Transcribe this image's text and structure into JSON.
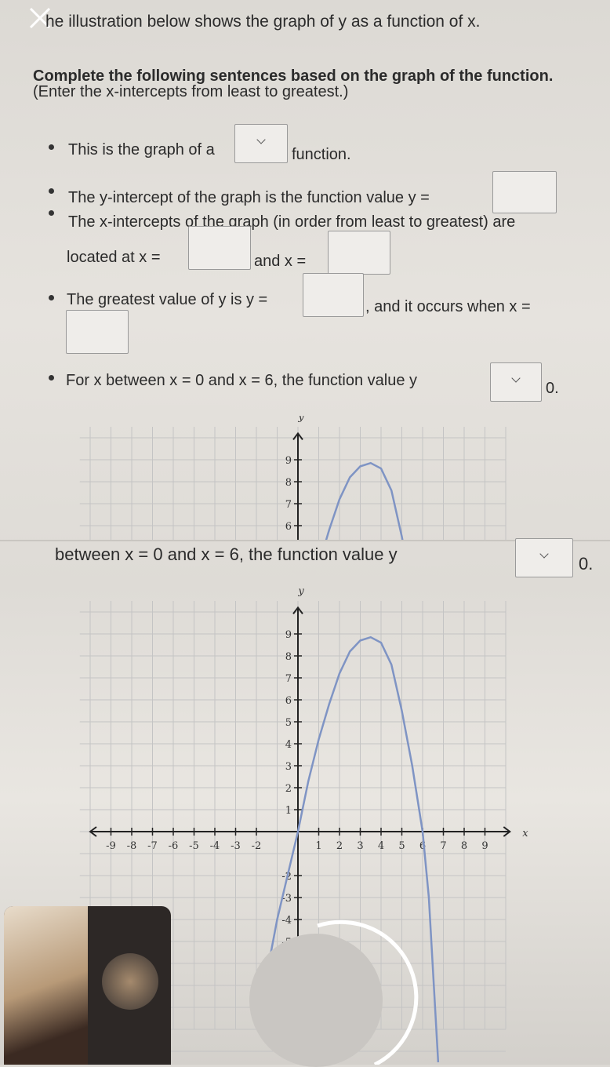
{
  "close_icon": "x-close-icon",
  "intro": "he illustration below shows the graph of y as a function of x.",
  "instructions": {
    "line1": "Complete the following sentences based on the graph of the function.",
    "line2": "(Enter the x-intercepts from least to greatest.)"
  },
  "s1": {
    "before": "This is the graph of a",
    "after": "function."
  },
  "s2": {
    "text": "The y-intercept of the graph is the function value y =",
    "end": "."
  },
  "s3": {
    "line1": "The x-intercepts of the graph (in order from least to greatest) are",
    "located": "located at x =",
    "and": "and x =",
    "end": "."
  },
  "s4": {
    "text": "The greatest value of y is y =",
    "mid": ", and it occurs when x =",
    "end": "."
  },
  "s5": {
    "text": "For x between x = 0 and x = 6, the function value y",
    "partial": "between x = 0 and x = 6, the function value y",
    "end": "0."
  },
  "chart_data": {
    "type": "line",
    "xlabel": "x",
    "ylabel": "y",
    "xlim": [
      -10,
      10
    ],
    "ylim": [
      -10,
      10
    ],
    "grid": true,
    "x_ticks": [
      "-9",
      "-8",
      "-7",
      "-6",
      "-5",
      "-4",
      "-3",
      "-2",
      "1",
      "2",
      "3",
      "4",
      "5",
      "6",
      "7",
      "8",
      "9"
    ],
    "y_ticks": [
      "9",
      "8",
      "7",
      "6",
      "5",
      "4",
      "3",
      "2",
      "1",
      "-2",
      "-3",
      "-4",
      "-5"
    ],
    "series": [
      {
        "color": "#7f94c4",
        "x": [
          -1.3,
          -1,
          -0.5,
          0,
          0.5,
          1,
          1.5,
          2,
          2.5,
          3,
          3.5,
          4,
          4.5,
          5,
          5.5,
          6,
          6.3,
          6.6,
          6.75
        ],
        "y": [
          -5.5,
          -4,
          -2,
          0,
          2.3,
          4.2,
          5.8,
          7.2,
          8.2,
          8.7,
          8.85,
          8.6,
          7.6,
          5.5,
          3,
          0,
          -3,
          -8,
          -10.5
        ]
      }
    ]
  },
  "overlays": {
    "video_call": "video-call-thumbnail",
    "record_button": "record-button"
  }
}
